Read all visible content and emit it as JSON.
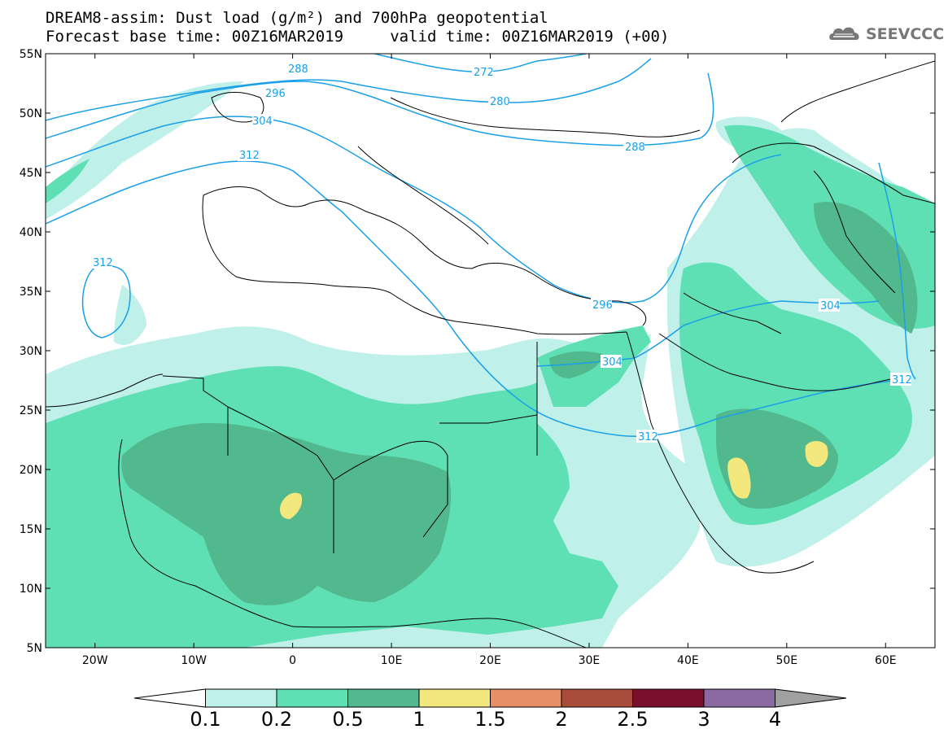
{
  "header": {
    "title_line1": "DREAM8-assim: Dust load (g/m²) and 700hPa geopotential",
    "title_line2": "Forecast base time: 00Z16MAR2019     valid time: 00Z16MAR2019 (+00)"
  },
  "logo": {
    "text": "SEEVCCC",
    "icon": "cloud-icon"
  },
  "map": {
    "lon_range": [
      -25,
      65
    ],
    "lat_range": [
      5,
      55
    ],
    "lat_labels": [
      "55N",
      "50N",
      "45N",
      "40N",
      "35N",
      "30N",
      "25N",
      "20N",
      "15N",
      "10N",
      "5N"
    ],
    "lon_labels": [
      "20W",
      "10W",
      "0",
      "10E",
      "20E",
      "30E",
      "40E",
      "50E",
      "60E"
    ],
    "contour_labels": [
      "272",
      "280",
      "288",
      "288",
      "296",
      "296",
      "304",
      "304",
      "304",
      "312",
      "312",
      "312",
      "312"
    ]
  },
  "colorbar": {
    "labels": [
      "0.1",
      "0.2",
      "0.5",
      "1",
      "1.5",
      "2",
      "2.5",
      "3",
      "4"
    ],
    "colors": [
      "#ffffff",
      "#bff0ea",
      "#5fe0b4",
      "#52b88e",
      "#f2e87e",
      "#e88f68",
      "#a94c3c",
      "#7a0f2c",
      "#8a6aa0",
      "#a0a0a0"
    ]
  }
}
